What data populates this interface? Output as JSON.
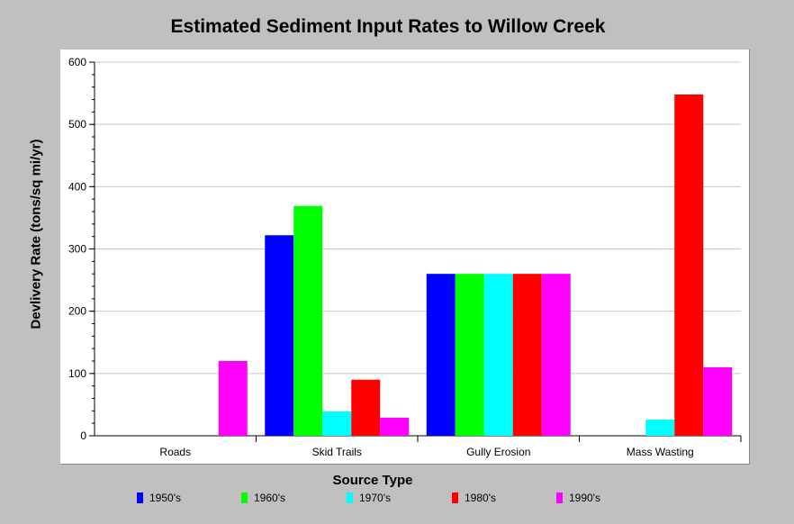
{
  "chart_data": {
    "type": "bar",
    "title": "Estimated Sediment Input Rates to Willow Creek",
    "xlabel": "Source Type",
    "ylabel": "Devlivery Rate (tons/sq mi/yr)",
    "categories": [
      "Roads",
      "Skid Trails",
      "Gully Erosion",
      "Mass Wasting"
    ],
    "series": [
      {
        "name": "1950's",
        "color": "#0000ff",
        "values": [
          0,
          322,
          260,
          0
        ]
      },
      {
        "name": "1960's",
        "color": "#00ff00",
        "values": [
          0,
          369,
          260,
          0
        ]
      },
      {
        "name": "1970's",
        "color": "#00ffff",
        "values": [
          0,
          39,
          260,
          26
        ]
      },
      {
        "name": "1980's",
        "color": "#ff0000",
        "values": [
          0,
          90,
          260,
          548
        ]
      },
      {
        "name": "1990's",
        "color": "#ff00ff",
        "values": [
          120,
          29,
          260,
          110
        ]
      }
    ],
    "ylim": [
      0,
      600
    ],
    "yticks": [
      0,
      100,
      200,
      300,
      400,
      500,
      600
    ],
    "ytick_labels": [
      "0",
      "100",
      "200",
      "300",
      "400",
      "500",
      "600"
    ],
    "grid": true,
    "legend_position": "bottom"
  }
}
